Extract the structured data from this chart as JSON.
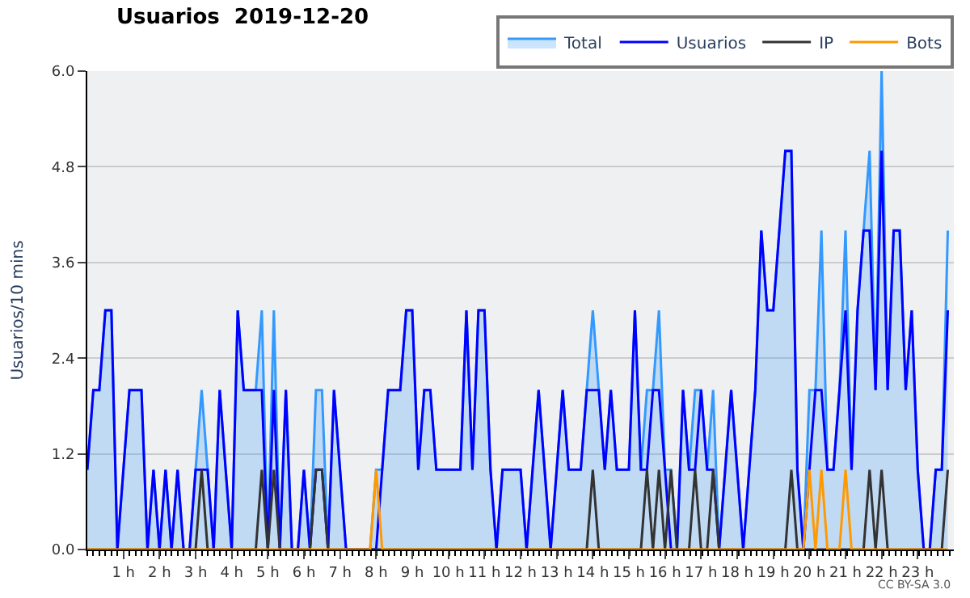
{
  "chart_data": {
    "type": "line",
    "title": "Usuarios  2019-12-20",
    "ylabel": "Usuarios/10 mins",
    "x": [
      0,
      0.167,
      0.333,
      0.5,
      0.667,
      0.833,
      1,
      1.167,
      1.333,
      1.5,
      1.667,
      1.833,
      2,
      2.167,
      2.333,
      2.5,
      2.667,
      2.833,
      3,
      3.167,
      3.333,
      3.5,
      3.667,
      3.833,
      4,
      4.167,
      4.333,
      4.5,
      4.667,
      4.833,
      5,
      5.167,
      5.333,
      5.5,
      5.667,
      5.833,
      6,
      6.167,
      6.333,
      6.5,
      6.667,
      6.833,
      7,
      7.167,
      7.333,
      7.5,
      7.667,
      7.833,
      8,
      8.167,
      8.333,
      8.5,
      8.667,
      8.833,
      9,
      9.167,
      9.333,
      9.5,
      9.667,
      9.833,
      10,
      10.167,
      10.333,
      10.5,
      10.667,
      10.833,
      11,
      11.167,
      11.333,
      11.5,
      11.667,
      11.833,
      12,
      12.167,
      12.333,
      12.5,
      12.667,
      12.833,
      13,
      13.167,
      13.333,
      13.5,
      13.667,
      13.833,
      14,
      14.167,
      14.333,
      14.5,
      14.667,
      14.833,
      15,
      15.167,
      15.333,
      15.5,
      15.667,
      15.833,
      16,
      16.167,
      16.333,
      16.5,
      16.667,
      16.833,
      17,
      17.167,
      17.333,
      17.5,
      17.667,
      17.833,
      18,
      18.167,
      18.333,
      18.5,
      18.667,
      18.833,
      19,
      19.167,
      19.333,
      19.5,
      19.667,
      19.833,
      20,
      20.167,
      20.333,
      20.5,
      20.667,
      20.833,
      21,
      21.167,
      21.333,
      21.5,
      21.667,
      21.833,
      22,
      22.167,
      22.333,
      22.5,
      22.667,
      22.833,
      23,
      23.167,
      23.333,
      23.5,
      23.667,
      23.833
    ],
    "series": [
      {
        "name": "Total",
        "type": "area",
        "color": "#3399ff",
        "values": [
          1,
          2,
          2,
          3,
          3,
          0,
          1,
          2,
          2,
          2,
          0,
          1,
          0,
          1,
          0,
          1,
          0,
          0,
          1,
          2,
          1,
          0,
          2,
          1,
          0,
          3,
          2,
          2,
          2,
          3,
          0,
          3,
          0,
          2,
          0,
          0,
          1,
          0,
          2,
          2,
          0,
          2,
          1,
          0,
          0,
          0,
          0,
          0,
          1,
          1,
          2,
          2,
          2,
          3,
          3,
          1,
          2,
          2,
          1,
          1,
          1,
          1,
          1,
          3,
          1,
          3,
          3,
          1,
          0,
          1,
          1,
          1,
          1,
          0,
          1,
          2,
          1,
          0,
          1,
          2,
          1,
          1,
          1,
          2,
          3,
          2,
          1,
          2,
          1,
          1,
          1,
          3,
          1,
          2,
          2,
          3,
          1,
          1,
          0,
          2,
          1,
          2,
          2,
          1,
          2,
          0,
          1,
          2,
          1,
          0,
          1,
          2,
          4,
          3,
          3,
          4,
          5,
          5,
          1,
          0,
          2,
          2,
          4,
          1,
          1,
          2,
          4,
          1,
          3,
          4,
          5,
          2,
          6,
          2,
          4,
          4,
          2,
          3,
          1,
          0,
          0,
          1,
          1,
          4
        ]
      },
      {
        "name": "Usuarios",
        "color": "#0000ff",
        "values": [
          1,
          2,
          2,
          3,
          3,
          0,
          1,
          2,
          2,
          2,
          0,
          1,
          0,
          1,
          0,
          1,
          0,
          0,
          1,
          1,
          1,
          0,
          2,
          1,
          0,
          3,
          2,
          2,
          2,
          2,
          0,
          2,
          0,
          2,
          0,
          0,
          1,
          0,
          1,
          1,
          0,
          2,
          1,
          0,
          0,
          0,
          0,
          0,
          0,
          1,
          2,
          2,
          2,
          3,
          3,
          1,
          2,
          2,
          1,
          1,
          1,
          1,
          1,
          3,
          1,
          3,
          3,
          1,
          0,
          1,
          1,
          1,
          1,
          0,
          1,
          2,
          1,
          0,
          1,
          2,
          1,
          1,
          1,
          2,
          2,
          2,
          1,
          2,
          1,
          1,
          1,
          3,
          1,
          1,
          2,
          2,
          1,
          0,
          0,
          2,
          1,
          1,
          2,
          1,
          1,
          0,
          1,
          2,
          1,
          0,
          1,
          2,
          4,
          3,
          3,
          4,
          5,
          5,
          1,
          0,
          1,
          2,
          2,
          1,
          1,
          2,
          3,
          1,
          3,
          4,
          4,
          2,
          5,
          2,
          4,
          4,
          2,
          3,
          1,
          0,
          0,
          1,
          1,
          3
        ]
      },
      {
        "name": "IP",
        "color": "#333333",
        "values": [
          0,
          0,
          0,
          0,
          0,
          0,
          0,
          0,
          0,
          0,
          0,
          0,
          0,
          0,
          0,
          0,
          0,
          0,
          0,
          1,
          0,
          0,
          0,
          0,
          0,
          0,
          0,
          0,
          0,
          1,
          0,
          1,
          0,
          0,
          0,
          0,
          0,
          0,
          1,
          1,
          0,
          0,
          0,
          0,
          0,
          0,
          0,
          0,
          0,
          0,
          0,
          0,
          0,
          0,
          0,
          0,
          0,
          0,
          0,
          0,
          0,
          0,
          0,
          0,
          0,
          0,
          0,
          0,
          0,
          0,
          0,
          0,
          0,
          0,
          0,
          0,
          0,
          0,
          0,
          0,
          0,
          0,
          0,
          0,
          1,
          0,
          0,
          0,
          0,
          0,
          0,
          0,
          0,
          1,
          0,
          1,
          0,
          1,
          0,
          0,
          0,
          1,
          0,
          0,
          1,
          0,
          0,
          0,
          0,
          0,
          0,
          0,
          0,
          0,
          0,
          0,
          0,
          1,
          0,
          0,
          0,
          0,
          0,
          0,
          0,
          0,
          0,
          0,
          0,
          0,
          1,
          0,
          1,
          0,
          0,
          0,
          0,
          0,
          0,
          0,
          0,
          0,
          0,
          1
        ]
      },
      {
        "name": "Bots",
        "color": "#ff9900",
        "values": [
          0,
          0,
          0,
          0,
          0,
          0,
          0,
          0,
          0,
          0,
          0,
          0,
          0,
          0,
          0,
          0,
          0,
          0,
          0,
          0,
          0,
          0,
          0,
          0,
          0,
          0,
          0,
          0,
          0,
          0,
          0,
          0,
          0,
          0,
          0,
          0,
          0,
          0,
          0,
          0,
          0,
          0,
          0,
          0,
          0,
          0,
          0,
          0,
          1,
          0,
          0,
          0,
          0,
          0,
          0,
          0,
          0,
          0,
          0,
          0,
          0,
          0,
          0,
          0,
          0,
          0,
          0,
          0,
          0,
          0,
          0,
          0,
          0,
          0,
          0,
          0,
          0,
          0,
          0,
          0,
          0,
          0,
          0,
          0,
          0,
          0,
          0,
          0,
          0,
          0,
          0,
          0,
          0,
          0,
          0,
          0,
          0,
          0,
          0,
          0,
          0,
          0,
          0,
          0,
          0,
          0,
          0,
          0,
          0,
          0,
          0,
          0,
          0,
          0,
          0,
          0,
          0,
          0,
          0,
          0,
          1,
          0,
          1,
          0,
          0,
          0,
          1,
          0,
          0,
          0,
          0,
          0,
          0,
          0,
          0,
          0,
          0,
          0,
          0,
          0,
          0,
          0,
          0,
          0
        ]
      }
    ],
    "xlim": [
      0,
      24
    ],
    "xticks": [
      {
        "value": 1,
        "label": "1 h"
      },
      {
        "value": 2,
        "label": "2 h"
      },
      {
        "value": 3,
        "label": "3 h"
      },
      {
        "value": 4,
        "label": "4 h"
      },
      {
        "value": 5,
        "label": "5 h"
      },
      {
        "value": 6,
        "label": "6 h"
      },
      {
        "value": 7,
        "label": "7 h"
      },
      {
        "value": 8,
        "label": "8 h"
      },
      {
        "value": 9,
        "label": "9 h"
      },
      {
        "value": 10,
        "label": "10 h"
      },
      {
        "value": 11,
        "label": "11 h"
      },
      {
        "value": 12,
        "label": "12 h"
      },
      {
        "value": 13,
        "label": "13 h"
      },
      {
        "value": 14,
        "label": "14 h"
      },
      {
        "value": 15,
        "label": "15 h"
      },
      {
        "value": 16,
        "label": "16 h"
      },
      {
        "value": 17,
        "label": "17 h"
      },
      {
        "value": 18,
        "label": "18 h"
      },
      {
        "value": 19,
        "label": "19 h"
      },
      {
        "value": 20,
        "label": "20 h"
      },
      {
        "value": 21,
        "label": "21 h"
      },
      {
        "value": 22,
        "label": "22 h"
      },
      {
        "value": 23,
        "label": "23 h"
      }
    ],
    "ylim": [
      0,
      6
    ],
    "yticks": [
      {
        "value": 0,
        "label": "0.0"
      },
      1.2,
      2.4,
      3.6,
      4.8,
      {
        "value": 6,
        "label": "6.0"
      }
    ],
    "grid": "y",
    "legend": "top right",
    "marker": "none",
    "line_style": "solid",
    "annotations": [
      "CC BY-SA 3.0"
    ]
  }
}
